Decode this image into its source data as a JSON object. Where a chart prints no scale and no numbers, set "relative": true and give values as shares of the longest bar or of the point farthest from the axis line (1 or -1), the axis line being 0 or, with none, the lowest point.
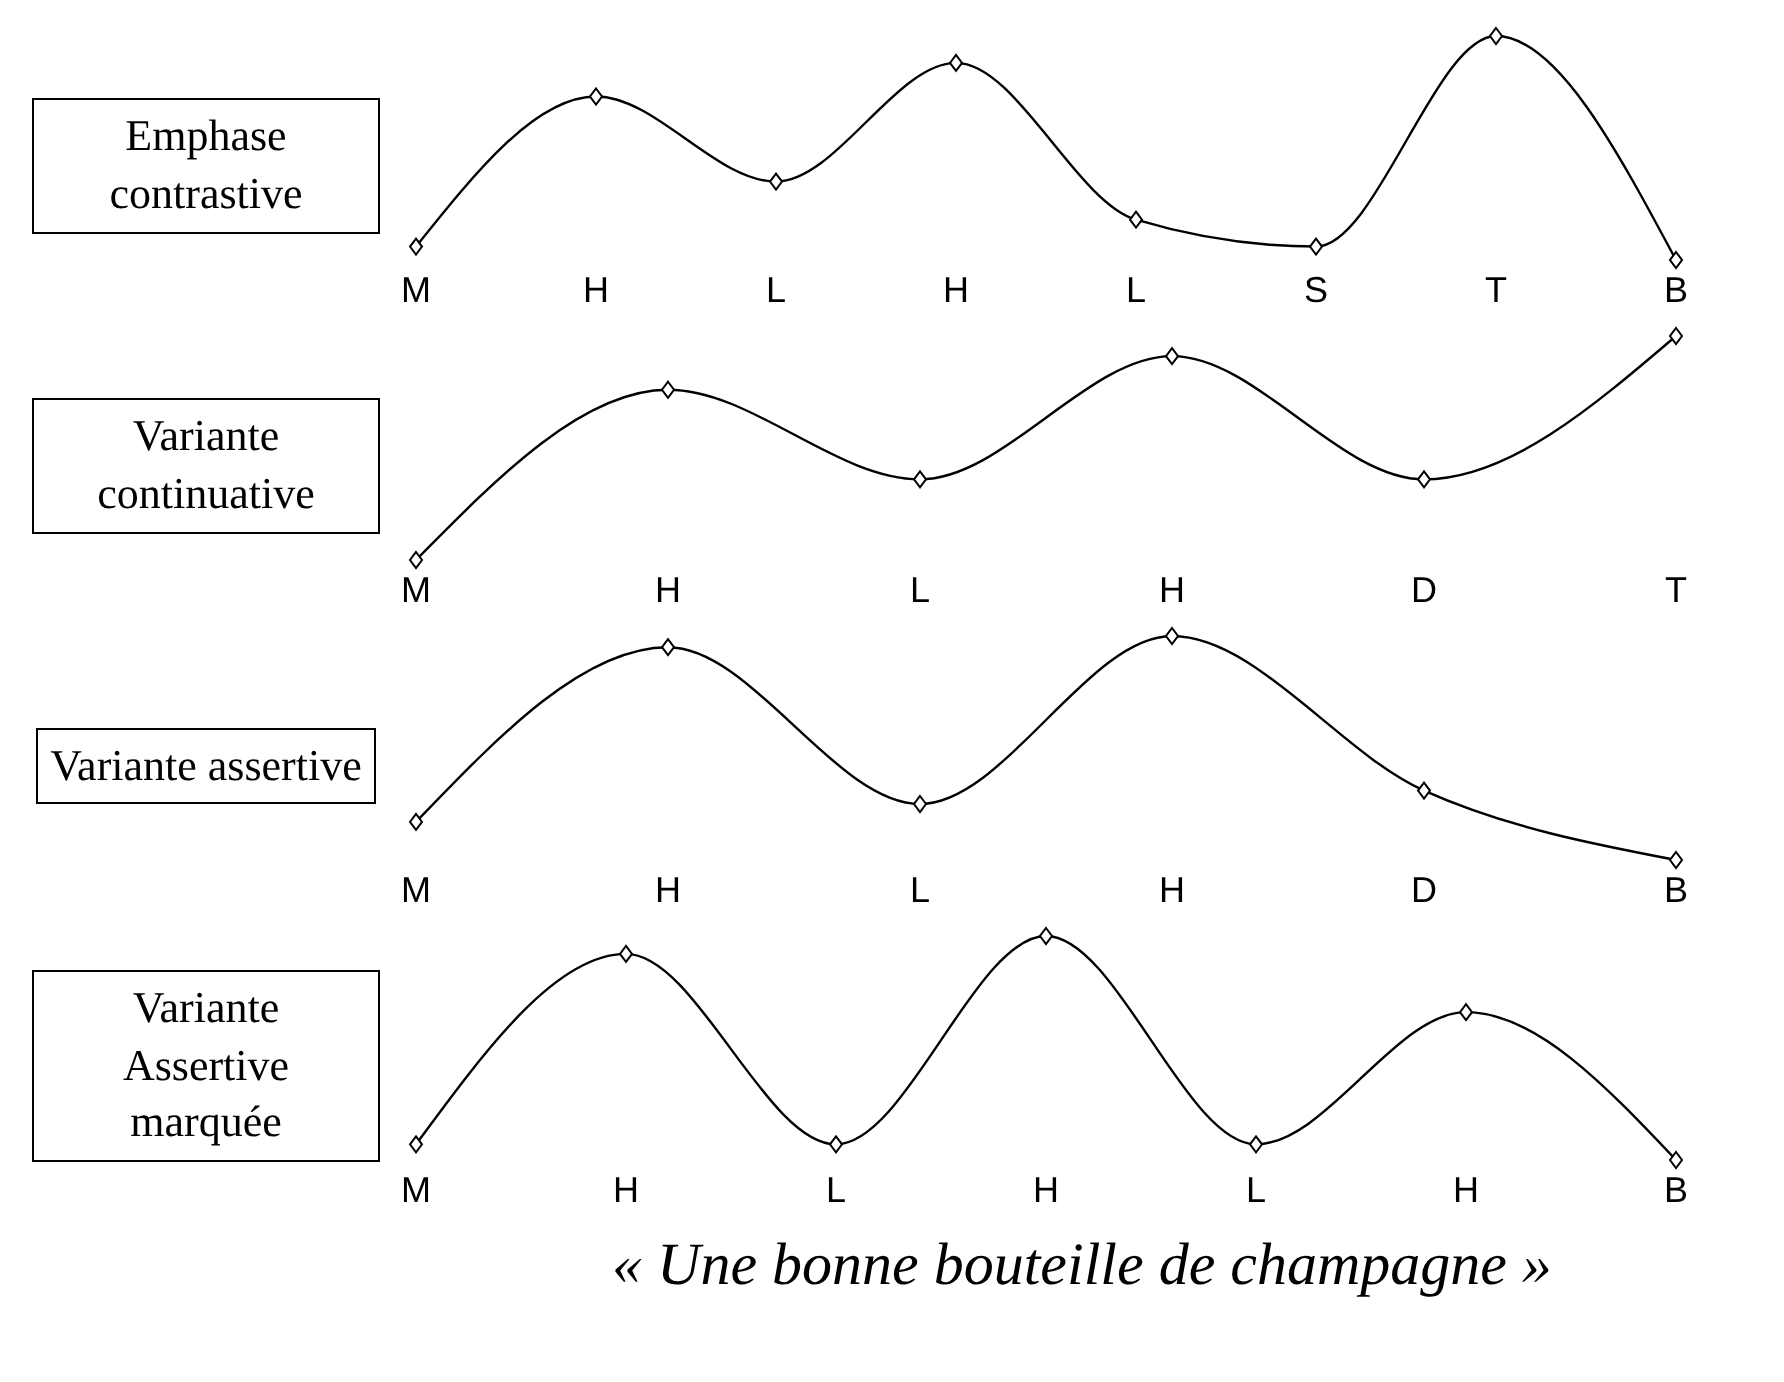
{
  "chart_data": [
    {
      "type": "line",
      "title": "Emphase contrastive",
      "categories": [
        "M",
        "H",
        "L",
        "H",
        "L",
        "S",
        "T",
        "B"
      ],
      "values": [
        0.06,
        0.73,
        0.35,
        0.88,
        0.18,
        0.06,
        1,
        0
      ],
      "color": "#000000",
      "relative": true,
      "marker": "diamond"
    },
    {
      "type": "line",
      "title": "Variante continuative",
      "categories": [
        "M",
        "H",
        "L",
        "H",
        "D",
        "T"
      ],
      "values": [
        0,
        0.76,
        0.36,
        0.91,
        0.36,
        1
      ],
      "color": "#000000",
      "relative": true,
      "marker": "diamond"
    },
    {
      "type": "line",
      "title": "Variante assertive",
      "categories": [
        "M",
        "H",
        "L",
        "H",
        "D",
        "B"
      ],
      "values": [
        0.17,
        0.95,
        0.25,
        1,
        0.31,
        0
      ],
      "color": "#000000",
      "relative": true,
      "marker": "diamond"
    },
    {
      "type": "line",
      "title": "Variante Assertive marquée",
      "categories": [
        "M",
        "H",
        "L",
        "H",
        "L",
        "H",
        "B"
      ],
      "values": [
        0.07,
        0.92,
        0.07,
        1,
        0.07,
        0.66,
        0
      ],
      "color": "#000000",
      "relative": true,
      "marker": "diamond",
      "annotations": [
        "« Une bonne bouteille de champagne »"
      ]
    }
  ]
}
